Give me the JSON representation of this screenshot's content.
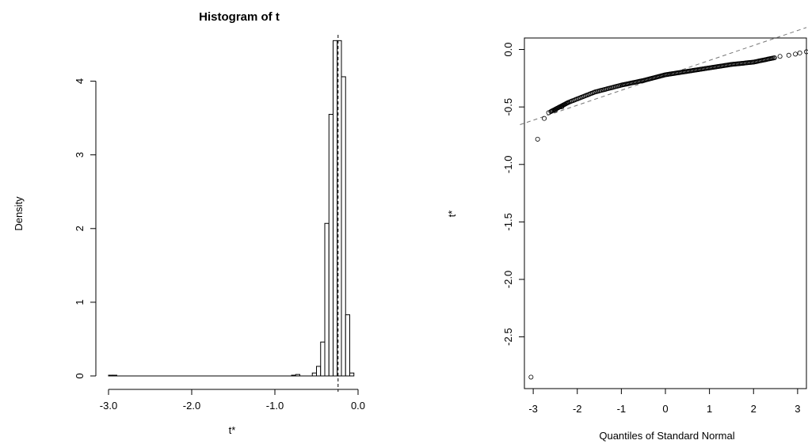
{
  "chart_data": [
    {
      "type": "bar",
      "title": "Histogram of t",
      "xlabel": "t*",
      "ylabel": "Density",
      "xlim": [
        -3.0,
        0.0
      ],
      "ylim": [
        0,
        4.5
      ],
      "xticks": [
        -3.0,
        -2.0,
        -1.0,
        0.0
      ],
      "xtick_labels": [
        "-3.0",
        "-2.0",
        "-1.0",
        "0.0"
      ],
      "yticks": [
        0,
        1,
        2,
        3,
        4
      ],
      "ytick_labels": [
        "0",
        "1",
        "2",
        "3",
        "4"
      ],
      "bin_width": 0.05,
      "bins": [
        {
          "start": -3.0,
          "end": -2.95,
          "density": 0.01
        },
        {
          "start": -2.95,
          "end": -2.9,
          "density": 0.01
        },
        {
          "start": -0.8,
          "end": -0.75,
          "density": 0.01
        },
        {
          "start": -0.75,
          "end": -0.7,
          "density": 0.02
        },
        {
          "start": -0.55,
          "end": -0.5,
          "density": 0.04
        },
        {
          "start": -0.5,
          "end": -0.45,
          "density": 0.13
        },
        {
          "start": -0.45,
          "end": -0.4,
          "density": 0.46
        },
        {
          "start": -0.4,
          "end": -0.35,
          "density": 2.07
        },
        {
          "start": -0.35,
          "end": -0.3,
          "density": 3.55
        },
        {
          "start": -0.3,
          "end": -0.25,
          "density": 4.55
        },
        {
          "start": -0.25,
          "end": -0.2,
          "density": 4.55
        },
        {
          "start": -0.2,
          "end": -0.15,
          "density": 4.06
        },
        {
          "start": -0.15,
          "end": -0.1,
          "density": 0.83
        },
        {
          "start": -0.1,
          "end": -0.05,
          "density": 0.04
        }
      ],
      "reference_line_x": -0.24,
      "grid": false,
      "legend": "none"
    },
    {
      "type": "scatter",
      "title": "",
      "xlabel": "Quantiles of Standard Normal",
      "ylabel": "t*",
      "xlim": [
        -3.2,
        3.2
      ],
      "ylim": [
        -2.95,
        0.1
      ],
      "xticks": [
        -3,
        -2,
        -1,
        0,
        1,
        2,
        3
      ],
      "xtick_labels": [
        "-3",
        "-2",
        "-1",
        "0",
        "1",
        "2",
        "3"
      ],
      "yticks": [
        0.0,
        -0.5,
        -1.0,
        -1.5,
        -2.0,
        -2.5
      ],
      "ytick_labels": [
        "0.0",
        "-0.5",
        "-1.0",
        "-1.5",
        "-2.0",
        "-2.5"
      ],
      "points": [
        {
          "x": -3.05,
          "y": -2.85
        },
        {
          "x": -2.9,
          "y": -0.78
        },
        {
          "x": -2.75,
          "y": -0.6
        },
        {
          "x": -2.65,
          "y": -0.55
        },
        {
          "x": -2.5,
          "y": -0.53
        },
        {
          "x": -2.35,
          "y": -0.5
        },
        {
          "x": 2.6,
          "y": -0.06
        },
        {
          "x": 2.8,
          "y": -0.05
        },
        {
          "x": 2.95,
          "y": -0.04
        },
        {
          "x": 3.05,
          "y": -0.03
        },
        {
          "x": 3.2,
          "y": -0.02
        }
      ],
      "dense_curve": [
        {
          "x": -2.6,
          "y": -0.54
        },
        {
          "x": -2.2,
          "y": -0.46
        },
        {
          "x": -1.6,
          "y": -0.37
        },
        {
          "x": -1.0,
          "y": -0.31
        },
        {
          "x": -0.5,
          "y": -0.27
        },
        {
          "x": 0.0,
          "y": -0.22
        },
        {
          "x": 0.5,
          "y": -0.19
        },
        {
          "x": 1.0,
          "y": -0.16
        },
        {
          "x": 1.5,
          "y": -0.13
        },
        {
          "x": 2.0,
          "y": -0.11
        },
        {
          "x": 2.5,
          "y": -0.07
        }
      ],
      "reference_line": {
        "intercept": -0.225,
        "slope": 0.13
      },
      "grid": false,
      "legend": "none"
    }
  ]
}
